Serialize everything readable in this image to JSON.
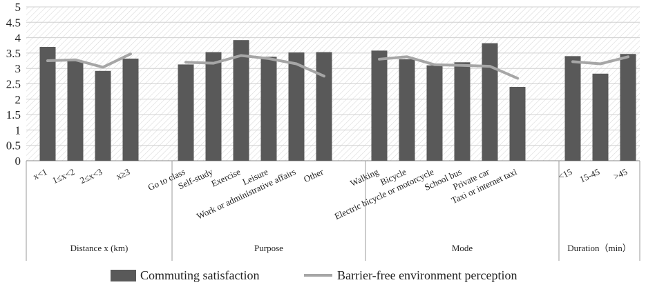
{
  "chart_data": {
    "type": "bar",
    "ylim": [
      0,
      5
    ],
    "yticks": [
      "0",
      "0.5",
      "1",
      "1.5",
      "2",
      "2.5",
      "3",
      "3.5",
      "4",
      "4.5",
      "5"
    ],
    "groups": [
      {
        "name": "Distance x (km)",
        "categories": [
          "x<1",
          "1≤x<2",
          "2≤x<3",
          "x≥3"
        ]
      },
      {
        "name": "Purpose",
        "categories": [
          "Go to class",
          "Self-study",
          "Exercise",
          "Leisure",
          "Work or administrative affairs",
          "Other"
        ]
      },
      {
        "name": "Mode",
        "categories": [
          "Walking",
          "Bicycle",
          "Electric bicycle or motorcycle",
          "School bus",
          "Private car",
          "Taxi or internet taxi"
        ]
      },
      {
        "name": "Duration（min）",
        "categories": [
          "<15",
          "15-45",
          ">45"
        ]
      }
    ],
    "series": [
      {
        "name": "Commuting satisfaction",
        "type": "bar",
        "color": "#595959",
        "values": [
          [
            3.7,
            3.25,
            2.92,
            3.32
          ],
          [
            3.13,
            3.53,
            3.92,
            3.38,
            3.52,
            3.53
          ],
          [
            3.58,
            3.3,
            3.1,
            3.2,
            3.82,
            2.4
          ],
          [
            3.4,
            2.83,
            3.47
          ]
        ]
      },
      {
        "name": "Barrier-free environment perception",
        "type": "line",
        "color": "#a6a6a6",
        "values": [
          [
            3.25,
            3.28,
            3.04,
            3.47
          ],
          [
            3.2,
            3.17,
            3.42,
            3.32,
            3.15,
            2.75
          ],
          [
            3.3,
            3.38,
            3.12,
            3.1,
            3.07,
            2.68
          ],
          [
            3.22,
            3.15,
            3.38
          ]
        ]
      }
    ],
    "legend": "bottom"
  }
}
